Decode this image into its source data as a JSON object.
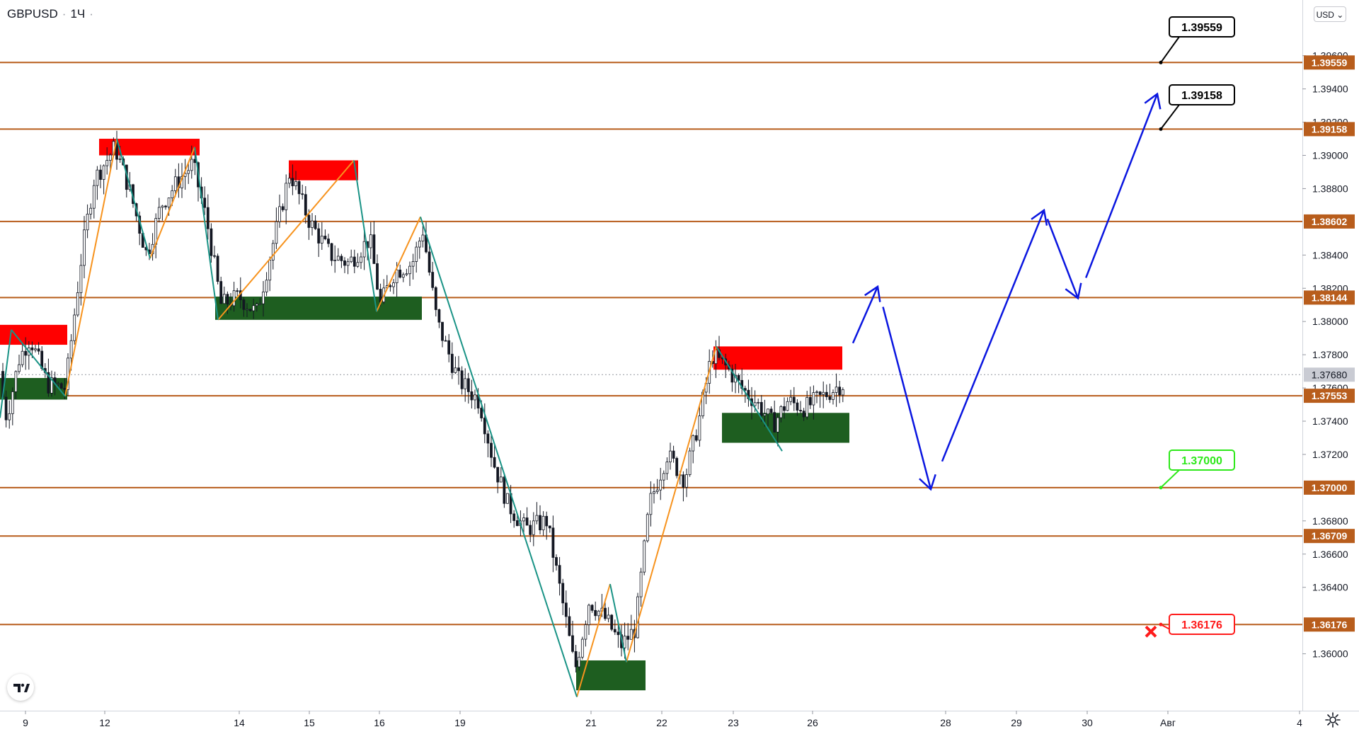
{
  "header": {
    "symbol": "GBPUSD",
    "interval": "1Ч",
    "separator": "·"
  },
  "toolbar": {
    "currency": "USD"
  },
  "colors": {
    "up_candle": "#131722",
    "support_zone": "#1e5e20",
    "resistance_zone": "#ff0000",
    "level_line": "#b85d1c",
    "level_tag": "#b85d1c",
    "wave_orange": "#f7931e",
    "wave_teal": "#1a9386",
    "forecast": "#0a16e0",
    "target": "#000000",
    "entry": "#2ee81a",
    "stop": "#ff1b1b"
  },
  "chart_data": {
    "type": "candlestick",
    "y_axis": {
      "min": 1.357,
      "max": 1.3985,
      "ticks": [
        "1.36000",
        "1.36400",
        "1.36600",
        "1.36800",
        "1.37200",
        "1.37400",
        "1.37600",
        "1.37800",
        "1.38000",
        "1.38200",
        "1.38400",
        "1.38800",
        "1.39000",
        "1.39200",
        "1.39400",
        "1.39600"
      ]
    },
    "x_axis": {
      "ticks": [
        "9",
        "12",
        "14",
        "15",
        "16",
        "19",
        "21",
        "22",
        "23",
        "26",
        "28",
        "29",
        "30",
        "Авг",
        "4"
      ]
    },
    "current_price": "1.37680",
    "levels": [
      {
        "value": 1.39559,
        "label": "1.39559"
      },
      {
        "value": 1.39158,
        "label": "1.39158"
      },
      {
        "value": 1.38602,
        "label": "1.38602"
      },
      {
        "value": 1.38144,
        "label": "1.38144"
      },
      {
        "value": 1.37553,
        "label": "1.37553"
      },
      {
        "value": 1.37,
        "label": "1.37000"
      },
      {
        "value": 1.36709,
        "label": "1.36709"
      },
      {
        "value": 1.36176,
        "label": "1.36176"
      }
    ],
    "callouts": [
      {
        "label": "1.39559",
        "value": 1.39559,
        "kind": "target"
      },
      {
        "label": "1.39158",
        "value": 1.39158,
        "kind": "target"
      },
      {
        "label": "1.37000",
        "value": 1.37,
        "kind": "entry"
      },
      {
        "label": "1.36176",
        "value": 1.36176,
        "kind": "stop"
      }
    ],
    "zones": [
      {
        "kind": "resistance",
        "from": "9",
        "to": "11",
        "low": 1.3786,
        "high": 1.3798
      },
      {
        "kind": "support",
        "from": "9",
        "to": "11",
        "low": 1.3753,
        "high": 1.3766
      },
      {
        "kind": "resistance",
        "from": "12",
        "to": "13",
        "low": 1.39,
        "high": 1.391
      },
      {
        "kind": "resistance",
        "from": "15",
        "to": "16",
        "low": 1.3885,
        "high": 1.3897
      },
      {
        "kind": "support",
        "from": "14",
        "to": "16",
        "low": 1.3801,
        "high": 1.3815
      },
      {
        "kind": "resistance",
        "from": "23",
        "to": "26",
        "low": 1.3771,
        "high": 1.3785
      },
      {
        "kind": "support",
        "from": "23",
        "to": "26",
        "low": 1.3727,
        "high": 1.3745
      },
      {
        "kind": "support",
        "from": "21",
        "to": "22",
        "low": 1.3578,
        "high": 1.3596
      }
    ],
    "forecast_path": [
      1.3787,
      1.3821,
      1.3699,
      1.3867,
      1.3814,
      1.3937
    ]
  }
}
